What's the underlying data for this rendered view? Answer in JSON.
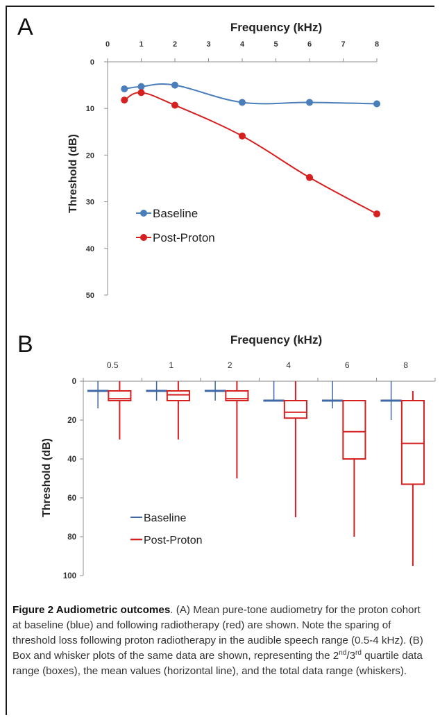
{
  "panel_a": {
    "letter": "A",
    "title": "Frequency (kHz)",
    "ylabel": "Threshold (dB)",
    "x_ticks": [
      "0",
      "1",
      "2",
      "3",
      "4",
      "5",
      "6",
      "7",
      "8"
    ],
    "y_ticks": [
      "0",
      "10",
      "20",
      "30",
      "40",
      "50"
    ],
    "legend": [
      "Baseline",
      "Post-Proton"
    ]
  },
  "panel_b": {
    "letter": "B",
    "title": "Frequency (kHz)",
    "ylabel": "Threshold (dB)",
    "categories": [
      "0.5",
      "1",
      "2",
      "4",
      "6",
      "8"
    ],
    "y_ticks": [
      "0",
      "20",
      "40",
      "60",
      "80",
      "100"
    ],
    "legend": [
      "Baseline",
      "Post-Proton"
    ]
  },
  "colors": {
    "baseline": "#4a7ebb",
    "post": "#d62020",
    "baseline_box": "#3f68a6"
  },
  "chart_data": [
    {
      "type": "line",
      "title": "Frequency (kHz)",
      "xlabel": "Frequency (kHz)",
      "ylabel": "Threshold (dB)",
      "xlim": [
        0,
        8
      ],
      "ylim": [
        0,
        50
      ],
      "y_inverted": true,
      "x_axis_position": "top",
      "legend_position": "center-left",
      "series": [
        {
          "name": "Baseline",
          "color": "#4a7ebb",
          "x": [
            0.5,
            1,
            2,
            4,
            6,
            8
          ],
          "y": [
            5.8,
            5.3,
            5.0,
            8.7,
            8.7,
            9.0
          ]
        },
        {
          "name": "Post-Proton",
          "color": "#d62020",
          "x": [
            0.5,
            1,
            2,
            4,
            6,
            8
          ],
          "y": [
            8.2,
            6.6,
            9.3,
            15.9,
            24.8,
            32.6
          ]
        }
      ]
    },
    {
      "type": "box",
      "title": "Frequency (kHz)",
      "xlabel": "Frequency (kHz)",
      "ylabel": "Threshold (dB)",
      "categories": [
        "0.5",
        "1",
        "2",
        "4",
        "6",
        "8"
      ],
      "ylim": [
        0,
        100
      ],
      "y_inverted": true,
      "x_axis_position": "top",
      "legend_position": "bottom-left",
      "series": [
        {
          "name": "Baseline",
          "color": "#3f68a6",
          "boxes": [
            {
              "min": 0,
              "q1": 5,
              "mean": 5,
              "q3": 5,
              "max": 14
            },
            {
              "min": 0,
              "q1": 5,
              "mean": 5,
              "q3": 5,
              "max": 10
            },
            {
              "min": 0,
              "q1": 5,
              "mean": 5,
              "q3": 5,
              "max": 10
            },
            {
              "min": 0,
              "q1": 10,
              "mean": 10,
              "q3": 10,
              "max": 10
            },
            {
              "min": 0,
              "q1": 10,
              "mean": 10,
              "q3": 10,
              "max": 14
            },
            {
              "min": 0,
              "q1": 10,
              "mean": 10,
              "q3": 10,
              "max": 20
            }
          ]
        },
        {
          "name": "Post-Proton",
          "color": "#d62020",
          "boxes": [
            {
              "min": 0,
              "q1": 5,
              "mean": 9,
              "q3": 10,
              "max": 30
            },
            {
              "min": 0,
              "q1": 5,
              "mean": 7,
              "q3": 10,
              "max": 30
            },
            {
              "min": 0,
              "q1": 5,
              "mean": 9,
              "q3": 10,
              "max": 50
            },
            {
              "min": 0,
              "q1": 10,
              "mean": 16,
              "q3": 19,
              "max": 70
            },
            {
              "min": 10,
              "q1": 10,
              "mean": 26,
              "q3": 40,
              "max": 80
            },
            {
              "min": 5,
              "q1": 10,
              "mean": 32,
              "q3": 53,
              "max": 95
            }
          ]
        }
      ]
    }
  ],
  "caption": {
    "bold": "Figure 2 Audiometric outcomes",
    "text1": ". (A) Mean pure-tone audiometry for the proton cohort at baseline (blue) and following radiotherapy (red) are shown. Note the sparing of threshold loss following proton radiotherapy in the audible speech range (0.5-4 kHz). (B) Box and whisker plots of the same data are shown, representing the 2",
    "sup1": "nd",
    "mid": "/3",
    "sup2": "rd",
    "text2": " quartile data range (boxes), the mean values (horizontal line), and the total data range (whiskers)."
  }
}
